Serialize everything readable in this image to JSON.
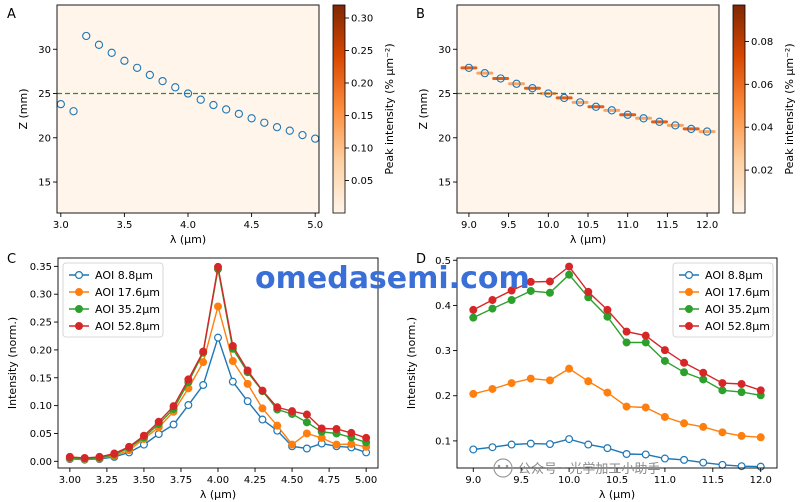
{
  "watermark": {
    "text": "omedasemi.com",
    "wechat": "公众号 · 光学加工小助手"
  },
  "chart_data": [
    {
      "panel": "A",
      "type": "scatter",
      "xlabel": "λ (μm)",
      "ylabel": "Z (mm)",
      "xlim": [
        2.97,
        5.03
      ],
      "ylim": [
        11.5,
        35
      ],
      "xticks": [
        "3.0",
        "3.5",
        "4.0",
        "4.5",
        "5.0"
      ],
      "xtick_values": [
        3.0,
        3.5,
        4.0,
        4.5,
        5.0
      ],
      "yticks": [
        "15",
        "20",
        "25",
        "30"
      ],
      "ytick_values": [
        15,
        20,
        25,
        30
      ],
      "dashed_line_y": 25,
      "colorbar": {
        "label": "Peak intensity (% μm⁻²)",
        "ticks": [
          "0.05",
          "0.10",
          "0.15",
          "0.20",
          "0.25",
          "0.30"
        ],
        "tick_values": [
          0.05,
          0.1,
          0.15,
          0.2,
          0.25,
          0.3
        ],
        "range": [
          0,
          0.32
        ]
      },
      "points": [
        [
          3.0,
          23.8
        ],
        [
          3.1,
          23.0
        ],
        [
          3.2,
          31.5
        ],
        [
          3.3,
          30.5
        ],
        [
          3.4,
          29.6
        ],
        [
          3.5,
          28.7
        ],
        [
          3.6,
          27.9
        ],
        [
          3.7,
          27.1
        ],
        [
          3.8,
          26.4
        ],
        [
          3.9,
          25.7
        ],
        [
          4.0,
          25.0
        ],
        [
          4.1,
          24.3
        ],
        [
          4.2,
          23.7
        ],
        [
          4.3,
          23.2
        ],
        [
          4.4,
          22.7
        ],
        [
          4.5,
          22.2
        ],
        [
          4.6,
          21.7
        ],
        [
          4.7,
          21.2
        ],
        [
          4.8,
          20.8
        ],
        [
          4.9,
          20.3
        ],
        [
          5.0,
          19.9
        ]
      ]
    },
    {
      "panel": "B",
      "type": "scatter",
      "xlabel": "λ (μm)",
      "ylabel": "Z (mm)",
      "xlim": [
        8.85,
        12.15
      ],
      "ylim": [
        11.5,
        35
      ],
      "xticks": [
        "9.0",
        "9.5",
        "10.0",
        "10.5",
        "11.0",
        "11.5",
        "12.0"
      ],
      "xtick_values": [
        9.0,
        9.5,
        10.0,
        10.5,
        11.0,
        11.5,
        12.0
      ],
      "yticks": [
        "15",
        "20",
        "25",
        "30"
      ],
      "ytick_values": [
        15,
        20,
        25,
        30
      ],
      "dashed_line_y": 25,
      "colorbar": {
        "label": "Peak intensity (% μm⁻²)",
        "ticks": [
          "0.02",
          "0.04",
          "0.06",
          "0.08"
        ],
        "tick_values": [
          0.02,
          0.04,
          0.06,
          0.08
        ],
        "range": [
          0,
          0.097
        ]
      },
      "points": [
        [
          9.0,
          27.9
        ],
        [
          9.2,
          27.3
        ],
        [
          9.4,
          26.7
        ],
        [
          9.6,
          26.1
        ],
        [
          9.8,
          25.6
        ],
        [
          10.0,
          25.0
        ],
        [
          10.2,
          24.5
        ],
        [
          10.4,
          24.0
        ],
        [
          10.6,
          23.5
        ],
        [
          10.8,
          23.1
        ],
        [
          11.0,
          22.6
        ],
        [
          11.2,
          22.2
        ],
        [
          11.4,
          21.8
        ],
        [
          11.6,
          21.4
        ],
        [
          11.8,
          21.0
        ],
        [
          12.0,
          20.7
        ]
      ]
    },
    {
      "panel": "C",
      "type": "line",
      "xlabel": "λ (μm)",
      "ylabel": "Intensity (norm.)",
      "xlim": [
        2.92,
        5.08
      ],
      "ylim": [
        -0.012,
        0.365
      ],
      "xticks": [
        "3.00",
        "3.25",
        "3.50",
        "3.75",
        "4.00",
        "4.25",
        "4.50",
        "4.75",
        "5.00"
      ],
      "xtick_values": [
        3.0,
        3.25,
        3.5,
        3.75,
        4.0,
        4.25,
        4.5,
        4.75,
        5.0
      ],
      "yticks": [
        "0.00",
        "0.05",
        "0.10",
        "0.15",
        "0.20",
        "0.25",
        "0.30",
        "0.35"
      ],
      "ytick_values": [
        0,
        0.05,
        0.1,
        0.15,
        0.2,
        0.25,
        0.3,
        0.35
      ],
      "legend": "top-left",
      "x": [
        3.0,
        3.1,
        3.2,
        3.3,
        3.4,
        3.5,
        3.6,
        3.7,
        3.8,
        3.9,
        4.0,
        4.1,
        4.2,
        4.3,
        4.4,
        4.5,
        4.6,
        4.7,
        4.8,
        4.9,
        5.0
      ],
      "series": [
        {
          "name": "AOI 8.8μm",
          "color": "#1f77b4",
          "filled": false,
          "values": [
            0.004,
            0.003,
            0.004,
            0.008,
            0.016,
            0.03,
            0.049,
            0.066,
            0.101,
            0.137,
            0.222,
            0.143,
            0.108,
            0.075,
            0.055,
            0.027,
            0.023,
            0.032,
            0.027,
            0.025,
            0.016
          ]
        },
        {
          "name": "AOI 17.6μm",
          "color": "#ff7f0e",
          "filled": true,
          "values": [
            0.005,
            0.004,
            0.005,
            0.01,
            0.02,
            0.04,
            0.061,
            0.089,
            0.131,
            0.178,
            0.278,
            0.18,
            0.139,
            0.095,
            0.064,
            0.03,
            0.05,
            0.042,
            0.03,
            0.031,
            0.026
          ]
        },
        {
          "name": "AOI 35.2μm",
          "color": "#2ca02c",
          "filled": true,
          "values": [
            0.006,
            0.005,
            0.006,
            0.012,
            0.024,
            0.043,
            0.067,
            0.094,
            0.142,
            0.195,
            0.345,
            0.202,
            0.16,
            0.126,
            0.093,
            0.085,
            0.07,
            0.053,
            0.05,
            0.043,
            0.034
          ]
        },
        {
          "name": "AOI 52.8μm",
          "color": "#d62728",
          "filled": true,
          "values": [
            0.008,
            0.006,
            0.008,
            0.014,
            0.026,
            0.046,
            0.071,
            0.099,
            0.147,
            0.197,
            0.349,
            0.207,
            0.163,
            0.127,
            0.097,
            0.09,
            0.084,
            0.059,
            0.058,
            0.051,
            0.042
          ]
        }
      ]
    },
    {
      "panel": "D",
      "type": "line",
      "xlabel": "λ (μm)",
      "ylabel": "Intensity (norm.)",
      "xlim": [
        8.83,
        12.17
      ],
      "ylim": [
        0.04,
        0.505
      ],
      "xticks": [
        "9.0",
        "9.5",
        "10.0",
        "10.5",
        "11.0",
        "11.5",
        "12.0"
      ],
      "xtick_values": [
        9.0,
        9.5,
        10.0,
        10.5,
        11.0,
        11.5,
        12.0
      ],
      "yticks": [
        "0.1",
        "0.2",
        "0.3",
        "0.4",
        "0.5"
      ],
      "ytick_values": [
        0.1,
        0.2,
        0.3,
        0.4,
        0.5
      ],
      "legend": "top-right",
      "x": [
        9.0,
        9.2,
        9.4,
        9.6,
        9.8,
        10.0,
        10.2,
        10.4,
        10.6,
        10.8,
        11.0,
        11.2,
        11.4,
        11.6,
        11.8,
        12.0
      ],
      "series": [
        {
          "name": "AOI 8.8μm",
          "color": "#1f77b4",
          "filled": false,
          "values": [
            0.081,
            0.086,
            0.092,
            0.094,
            0.093,
            0.104,
            0.092,
            0.084,
            0.071,
            0.07,
            0.061,
            0.058,
            0.052,
            0.047,
            0.044,
            0.043
          ]
        },
        {
          "name": "AOI 17.6μm",
          "color": "#ff7f0e",
          "filled": true,
          "values": [
            0.204,
            0.215,
            0.228,
            0.238,
            0.234,
            0.26,
            0.232,
            0.207,
            0.176,
            0.174,
            0.153,
            0.139,
            0.131,
            0.119,
            0.111,
            0.108
          ]
        },
        {
          "name": "AOI 35.2μm",
          "color": "#2ca02c",
          "filled": true,
          "values": [
            0.373,
            0.393,
            0.412,
            0.432,
            0.428,
            0.468,
            0.418,
            0.375,
            0.318,
            0.318,
            0.277,
            0.252,
            0.236,
            0.212,
            0.208,
            0.201
          ]
        },
        {
          "name": "AOI 52.8μm",
          "color": "#d62728",
          "filled": true,
          "values": [
            0.39,
            0.412,
            0.433,
            0.452,
            0.453,
            0.486,
            0.43,
            0.39,
            0.342,
            0.333,
            0.301,
            0.273,
            0.251,
            0.228,
            0.226,
            0.212
          ]
        }
      ]
    }
  ]
}
